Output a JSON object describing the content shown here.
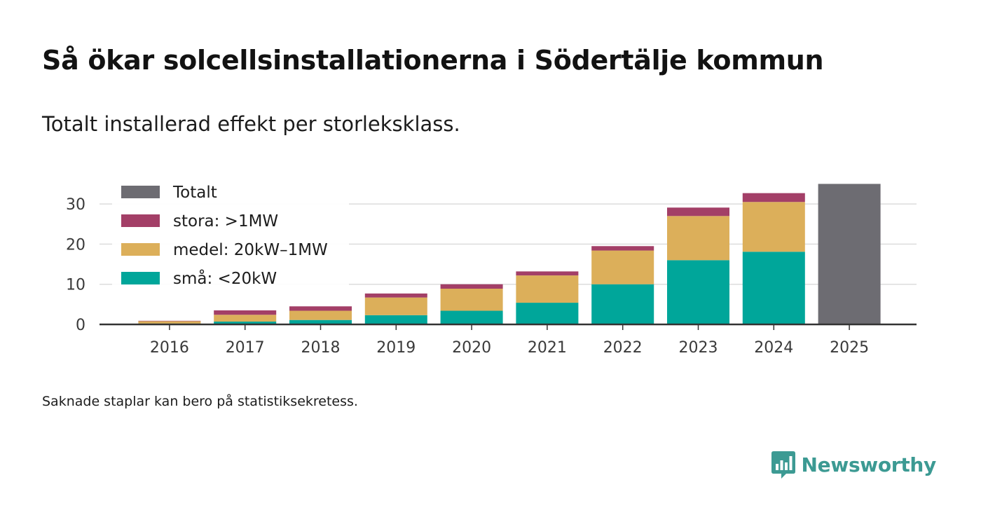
{
  "title": "Så ökar solcellsinstallationerna i Södertälje kommun",
  "subtitle": "Totalt installerad effekt per storleksklass.",
  "footnote": "Saknade staplar kan bero på statistiksekretess.",
  "brand": {
    "name": "Newsworthy",
    "icon": "newsworthy-logo-icon",
    "color": "#3c9a93"
  },
  "chart_data": {
    "type": "bar",
    "stacked": true,
    "title": "Så ökar solcellsinstallationerna i Södertälje kommun",
    "subtitle": "Totalt installerad effekt per storleksklass.",
    "xlabel": "",
    "ylabel": "",
    "ylim": [
      0,
      35
    ],
    "yticks": [
      0,
      10,
      20,
      30
    ],
    "grid": true,
    "legend": "top-left",
    "categories": [
      "2016",
      "2017",
      "2018",
      "2019",
      "2020",
      "2021",
      "2022",
      "2023",
      "2024",
      "2025"
    ],
    "series": [
      {
        "name": "små: <20kW",
        "color": "#00a69a",
        "values": [
          0.2,
          0.7,
          1.1,
          2.3,
          3.4,
          5.4,
          10.0,
          16.0,
          18.1,
          null
        ]
      },
      {
        "name": "medel: 20kW–1MW",
        "color": "#dcaf5a",
        "values": [
          0.6,
          1.7,
          2.3,
          4.4,
          5.5,
          6.8,
          8.4,
          11.0,
          12.4,
          null
        ]
      },
      {
        "name": "stora: >1MW",
        "color": "#a33f67",
        "values": [
          0.1,
          1.1,
          1.1,
          1.0,
          1.1,
          1.0,
          1.1,
          2.1,
          2.2,
          null
        ]
      },
      {
        "name": "Totalt",
        "color": "#6d6c72",
        "values": [
          null,
          null,
          null,
          null,
          null,
          null,
          null,
          null,
          null,
          35.0
        ]
      }
    ],
    "legend_order": [
      "Totalt",
      "stora: >1MW",
      "medel: 20kW–1MW",
      "små: <20kW"
    ]
  }
}
